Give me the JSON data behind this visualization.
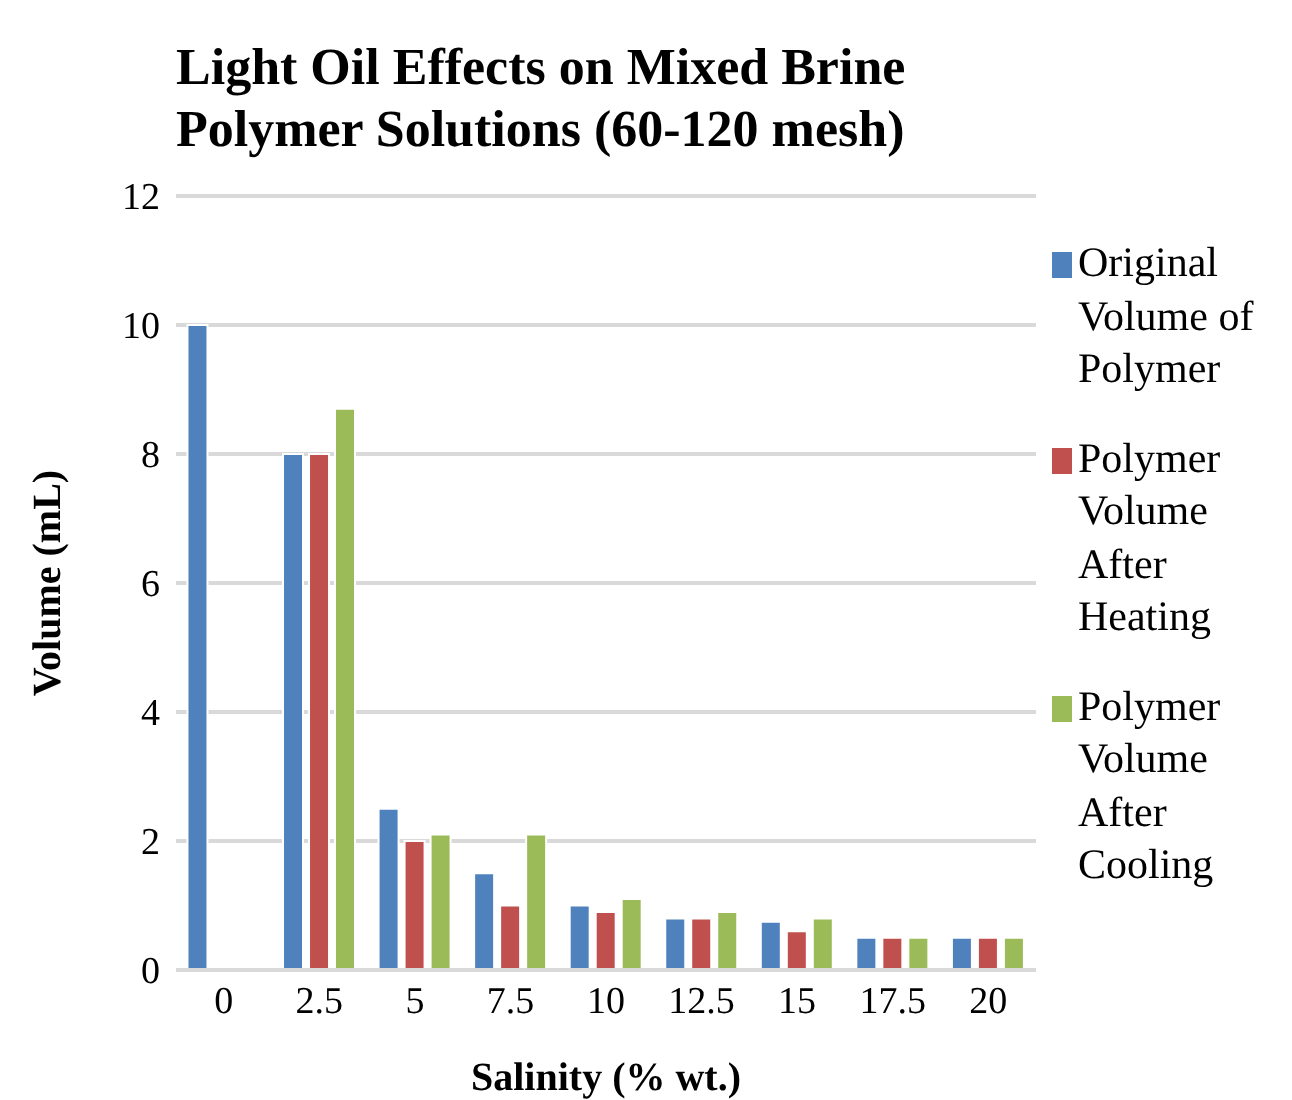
{
  "chart_data": {
    "type": "bar",
    "title": "Light Oil Effects on Mixed Brine Polymer Solutions (60-120 mesh)",
    "xlabel": "Salinity (% wt.)",
    "ylabel": "Volume (mL)",
    "categories": [
      "0",
      "2.5",
      "5",
      "7.5",
      "10",
      "12.5",
      "15",
      "17.5",
      "20"
    ],
    "series": [
      {
        "name": "Original Volume of Polymer",
        "color": "#4f81bd",
        "values": [
          10,
          8,
          2.5,
          1.5,
          1,
          0.8,
          0.75,
          0.5,
          0.5
        ]
      },
      {
        "name": "Polymer Volume After Heating",
        "color": "#c0504d",
        "values": [
          null,
          8,
          2,
          1,
          0.9,
          0.8,
          0.6,
          0.5,
          0.5
        ]
      },
      {
        "name": "Polymer Volume After Cooling",
        "color": "#9bbb59",
        "values": [
          null,
          8.7,
          2.1,
          2.1,
          1.1,
          0.9,
          0.8,
          0.5,
          0.5
        ]
      }
    ],
    "ylim": [
      0,
      12
    ],
    "yticks": [
      0,
      2,
      4,
      6,
      8,
      10,
      12
    ],
    "grid": "y",
    "legend": "right"
  }
}
